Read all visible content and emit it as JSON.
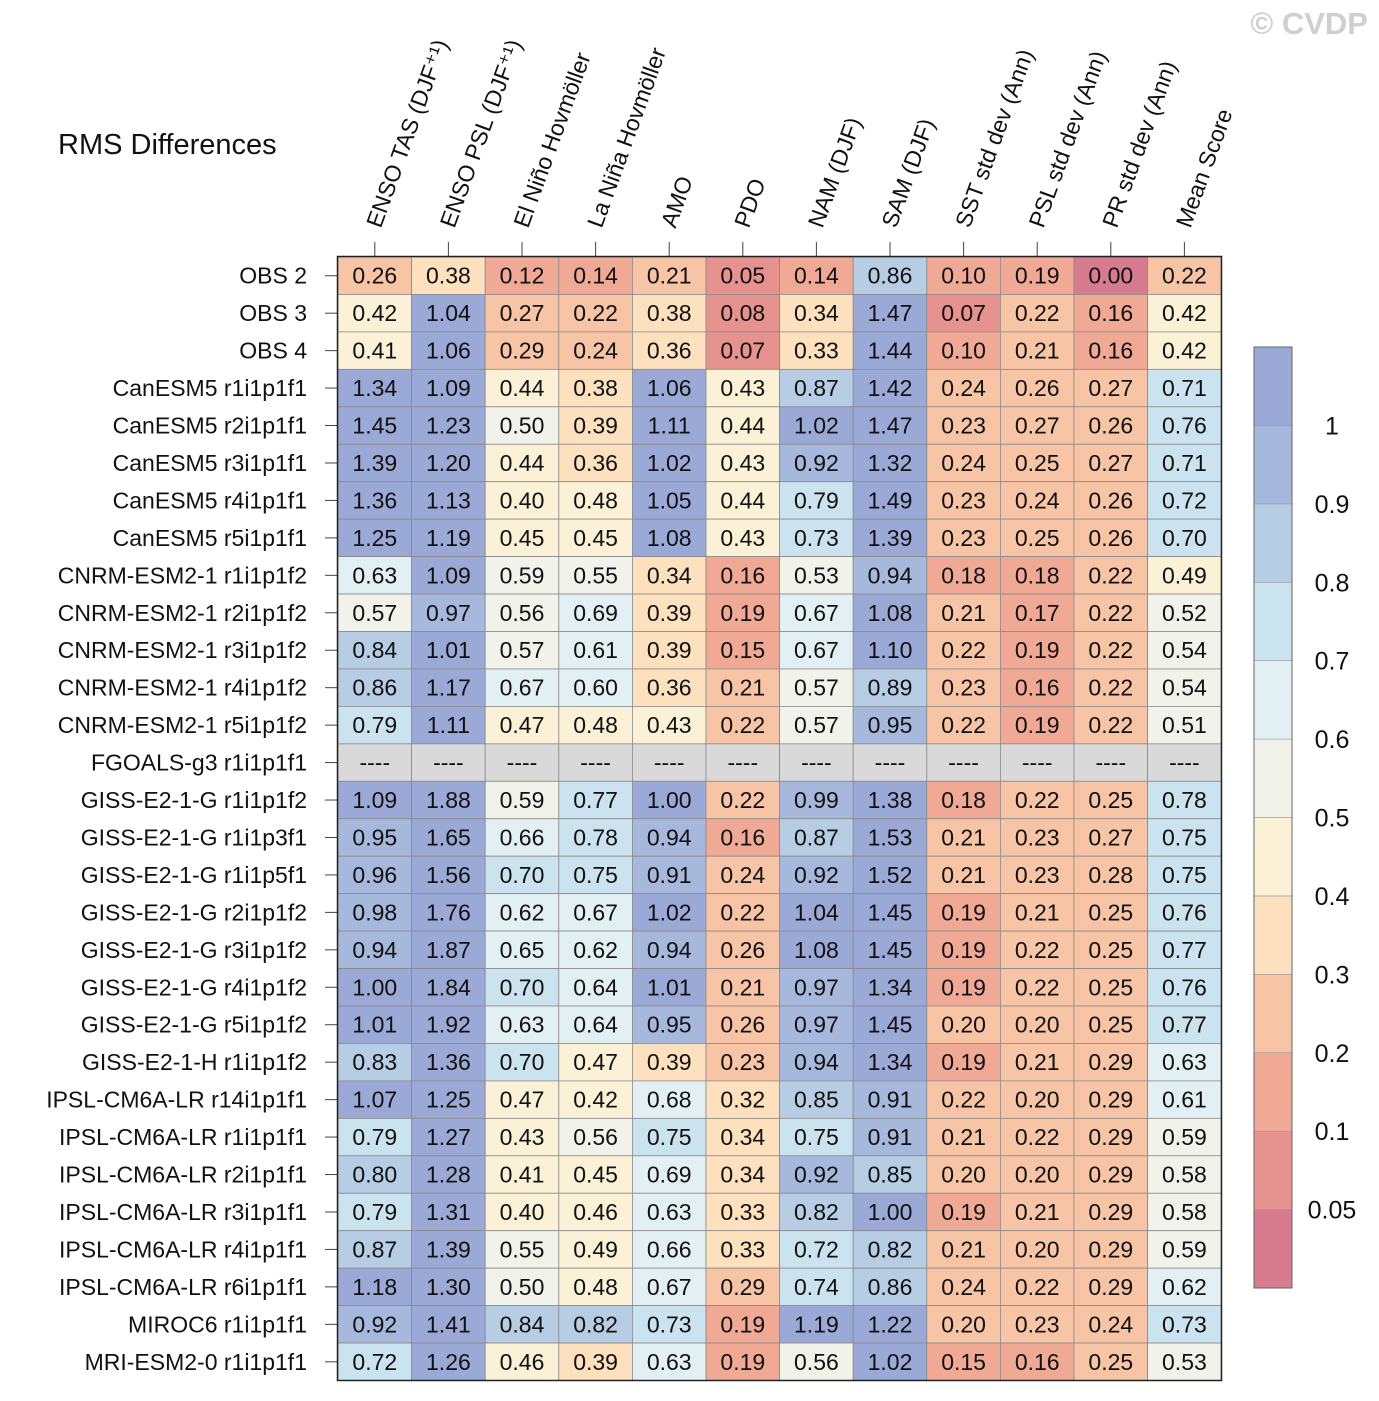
{
  "watermark": "© CVDP",
  "chart_data": {
    "type": "heatmap",
    "title": "RMS Differences",
    "columns": [
      "ENSO TAS (DJF⁺¹)",
      "ENSO PSL (DJF⁺¹)",
      "El Niño Hovmöller",
      "La Niña Hovmöller",
      "AMO",
      "PDO",
      "NAM (DJF)",
      "SAM (DJF)",
      "SST std dev (Ann)",
      "PSL std dev (Ann)",
      "PR std dev (Ann)",
      "Mean Score"
    ],
    "rows": [
      "OBS 2",
      "OBS 3",
      "OBS 4",
      "CanESM5 r1i1p1f1",
      "CanESM5 r2i1p1f1",
      "CanESM5 r3i1p1f1",
      "CanESM5 r4i1p1f1",
      "CanESM5 r5i1p1f1",
      "CNRM-ESM2-1 r1i1p1f2",
      "CNRM-ESM2-1 r2i1p1f2",
      "CNRM-ESM2-1 r3i1p1f2",
      "CNRM-ESM2-1 r4i1p1f2",
      "CNRM-ESM2-1 r5i1p1f2",
      "FGOALS-g3 r1i1p1f1",
      "GISS-E2-1-G r1i1p1f2",
      "GISS-E2-1-G r1i1p3f1",
      "GISS-E2-1-G r1i1p5f1",
      "GISS-E2-1-G r2i1p1f2",
      "GISS-E2-1-G r3i1p1f2",
      "GISS-E2-1-G r4i1p1f2",
      "GISS-E2-1-G r5i1p1f2",
      "GISS-E2-1-H r1i1p1f2",
      "IPSL-CM6A-LR r14i1p1f1",
      "IPSL-CM6A-LR r1i1p1f1",
      "IPSL-CM6A-LR r2i1p1f1",
      "IPSL-CM6A-LR r3i1p1f1",
      "IPSL-CM6A-LR r4i1p1f1",
      "IPSL-CM6A-LR r6i1p1f1",
      "MIROC6 r1i1p1f1",
      "MRI-ESM2-0 r1i1p1f1"
    ],
    "values": [
      [
        0.26,
        0.38,
        0.12,
        0.14,
        0.21,
        0.05,
        0.14,
        0.86,
        0.1,
        0.19,
        0.0,
        0.22
      ],
      [
        0.42,
        1.04,
        0.27,
        0.22,
        0.38,
        0.08,
        0.34,
        1.47,
        0.07,
        0.22,
        0.16,
        0.42
      ],
      [
        0.41,
        1.06,
        0.29,
        0.24,
        0.36,
        0.07,
        0.33,
        1.44,
        0.1,
        0.21,
        0.16,
        0.42
      ],
      [
        1.34,
        1.09,
        0.44,
        0.38,
        1.06,
        0.43,
        0.87,
        1.42,
        0.24,
        0.26,
        0.27,
        0.71
      ],
      [
        1.45,
        1.23,
        0.5,
        0.39,
        1.11,
        0.44,
        1.02,
        1.47,
        0.23,
        0.27,
        0.26,
        0.76
      ],
      [
        1.39,
        1.2,
        0.44,
        0.36,
        1.02,
        0.43,
        0.92,
        1.32,
        0.24,
        0.25,
        0.27,
        0.71
      ],
      [
        1.36,
        1.13,
        0.4,
        0.48,
        1.05,
        0.44,
        0.79,
        1.49,
        0.23,
        0.24,
        0.26,
        0.72
      ],
      [
        1.25,
        1.19,
        0.45,
        0.45,
        1.08,
        0.43,
        0.73,
        1.39,
        0.23,
        0.25,
        0.26,
        0.7
      ],
      [
        0.63,
        1.09,
        0.59,
        0.55,
        0.34,
        0.16,
        0.53,
        0.94,
        0.18,
        0.18,
        0.22,
        0.49
      ],
      [
        0.57,
        0.97,
        0.56,
        0.69,
        0.39,
        0.19,
        0.67,
        1.08,
        0.21,
        0.17,
        0.22,
        0.52
      ],
      [
        0.84,
        1.01,
        0.57,
        0.61,
        0.39,
        0.15,
        0.67,
        1.1,
        0.22,
        0.19,
        0.22,
        0.54
      ],
      [
        0.86,
        1.17,
        0.67,
        0.6,
        0.36,
        0.21,
        0.57,
        0.89,
        0.23,
        0.16,
        0.22,
        0.54
      ],
      [
        0.79,
        1.11,
        0.47,
        0.48,
        0.43,
        0.22,
        0.57,
        0.95,
        0.22,
        0.19,
        0.22,
        0.51
      ],
      [
        null,
        null,
        null,
        null,
        null,
        null,
        null,
        null,
        null,
        null,
        null,
        null
      ],
      [
        1.09,
        1.88,
        0.59,
        0.77,
        1.0,
        0.22,
        0.99,
        1.38,
        0.18,
        0.22,
        0.25,
        0.78
      ],
      [
        0.95,
        1.65,
        0.66,
        0.78,
        0.94,
        0.16,
        0.87,
        1.53,
        0.21,
        0.23,
        0.27,
        0.75
      ],
      [
        0.96,
        1.56,
        0.7,
        0.75,
        0.91,
        0.24,
        0.92,
        1.52,
        0.21,
        0.23,
        0.28,
        0.75
      ],
      [
        0.98,
        1.76,
        0.62,
        0.67,
        1.02,
        0.22,
        1.04,
        1.45,
        0.19,
        0.21,
        0.25,
        0.76
      ],
      [
        0.94,
        1.87,
        0.65,
        0.62,
        0.94,
        0.26,
        1.08,
        1.45,
        0.19,
        0.22,
        0.25,
        0.77
      ],
      [
        1.0,
        1.84,
        0.7,
        0.64,
        1.01,
        0.21,
        0.97,
        1.34,
        0.19,
        0.22,
        0.25,
        0.76
      ],
      [
        1.01,
        1.92,
        0.63,
        0.64,
        0.95,
        0.26,
        0.97,
        1.45,
        0.2,
        0.2,
        0.25,
        0.77
      ],
      [
        0.83,
        1.36,
        0.7,
        0.47,
        0.39,
        0.23,
        0.94,
        1.34,
        0.19,
        0.21,
        0.29,
        0.63
      ],
      [
        1.07,
        1.25,
        0.47,
        0.42,
        0.68,
        0.32,
        0.85,
        0.91,
        0.22,
        0.2,
        0.29,
        0.61
      ],
      [
        0.79,
        1.27,
        0.43,
        0.56,
        0.75,
        0.34,
        0.75,
        0.91,
        0.21,
        0.22,
        0.29,
        0.59
      ],
      [
        0.8,
        1.28,
        0.41,
        0.45,
        0.69,
        0.34,
        0.92,
        0.85,
        0.2,
        0.2,
        0.29,
        0.58
      ],
      [
        0.79,
        1.31,
        0.4,
        0.46,
        0.63,
        0.33,
        0.82,
        1.0,
        0.19,
        0.21,
        0.29,
        0.58
      ],
      [
        0.87,
        1.39,
        0.55,
        0.49,
        0.66,
        0.33,
        0.72,
        0.82,
        0.21,
        0.2,
        0.29,
        0.59
      ],
      [
        1.18,
        1.3,
        0.5,
        0.48,
        0.67,
        0.29,
        0.74,
        0.86,
        0.24,
        0.22,
        0.29,
        0.62
      ],
      [
        0.92,
        1.41,
        0.84,
        0.82,
        0.73,
        0.19,
        1.19,
        1.22,
        0.2,
        0.23,
        0.24,
        0.73
      ],
      [
        0.72,
        1.26,
        0.46,
        0.39,
        0.63,
        0.19,
        0.56,
        1.02,
        0.15,
        0.16,
        0.25,
        0.53
      ]
    ],
    "missing_label": "----",
    "missing_color": "#d9d9d9",
    "colorbar": {
      "thresholds": [
        0.05,
        0.1,
        0.2,
        0.3,
        0.4,
        0.5,
        0.6,
        0.7,
        0.8,
        0.9,
        1
      ],
      "tick_labels": [
        "0.05",
        "0.1",
        "0.2",
        "0.3",
        "0.4",
        "0.5",
        "0.6",
        "0.7",
        "0.8",
        "0.9",
        "1"
      ],
      "colors": [
        "#d77b8f",
        "#e6928e",
        "#f0a995",
        "#f7c4a5",
        "#fde0be",
        "#fbf1d6",
        "#f1f2ea",
        "#e2f0f4",
        "#cbe3ef",
        "#b6cde4",
        "#a6b9dc",
        "#9ba9d6"
      ]
    }
  }
}
